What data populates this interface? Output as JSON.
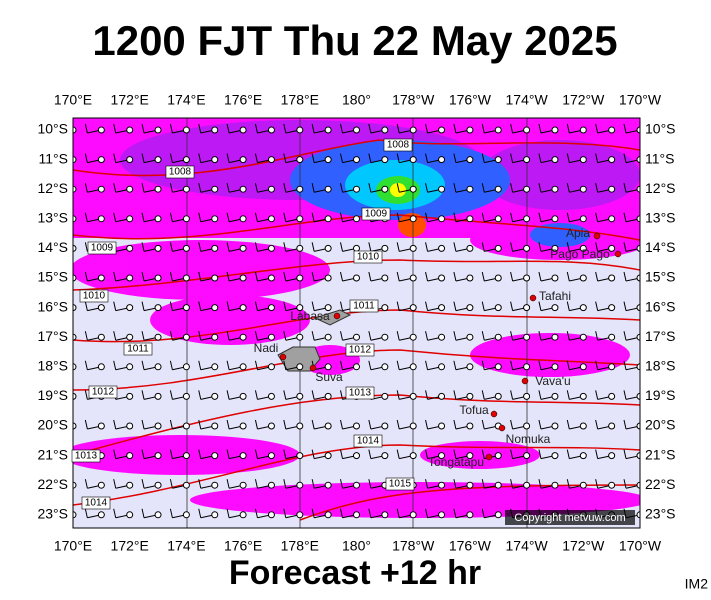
{
  "title": "1200 FJT Thu 22 May 2025",
  "footer": "Forecast +12 hr",
  "image_id": "IM2",
  "copyright": "Copyright metvuw.com",
  "longitudes": [
    "170°E",
    "172°E",
    "174°E",
    "176°E",
    "178°E",
    "180°",
    "178°W",
    "176°W",
    "174°W",
    "172°W",
    "170°W"
  ],
  "latitudes": [
    "10°S",
    "11°S",
    "12°S",
    "13°S",
    "14°S",
    "15°S",
    "16°S",
    "17°S",
    "18°S",
    "19°S",
    "20°S",
    "21°S",
    "22°S",
    "23°S"
  ],
  "isobars": [
    1008,
    1008,
    1009,
    1009,
    1010,
    1010,
    1011,
    1011,
    1012,
    1012,
    1013,
    1013,
    1014,
    1014,
    1015
  ],
  "places": [
    "Apia",
    "Pago Pago",
    "Tafahi",
    "Labasa",
    "Nadi",
    "Suva",
    "Vava'u",
    "Tofua",
    "Nomuka",
    "Tongatapu"
  ]
}
